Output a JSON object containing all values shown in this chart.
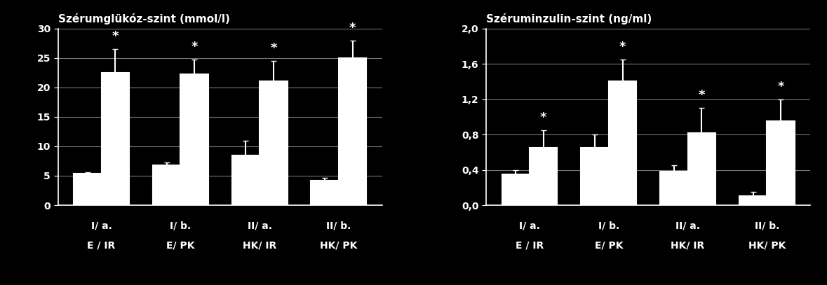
{
  "left": {
    "title": "Szérumglükóz-szint (mmol/l)",
    "ylim": [
      0,
      30
    ],
    "yticks": [
      0,
      5,
      10,
      15,
      20,
      25,
      30
    ],
    "ytick_labels": [
      "0",
      "5",
      "10",
      "15",
      "20",
      "25",
      "30"
    ],
    "before_vals": [
      5.3,
      6.8,
      8.5,
      4.2
    ],
    "after_vals": [
      22.5,
      22.2,
      21.0,
      25.0
    ],
    "before_errs": [
      0.3,
      0.4,
      2.5,
      0.4
    ],
    "after_errs": [
      4.0,
      2.5,
      3.5,
      3.0
    ]
  },
  "right": {
    "title": "Széruminzulin-szint (ng/ml)",
    "ylim": [
      0,
      2.0
    ],
    "yticks": [
      0.0,
      0.4,
      0.8,
      1.2,
      1.6,
      2.0
    ],
    "ytick_labels": [
      "0,0",
      "0,4",
      "0,8",
      "1,2",
      "1,6",
      "2,0"
    ],
    "before_vals": [
      0.35,
      0.65,
      0.38,
      0.1
    ],
    "after_vals": [
      0.65,
      1.4,
      0.82,
      0.95
    ],
    "before_errs": [
      0.05,
      0.15,
      0.07,
      0.05
    ],
    "after_errs": [
      0.2,
      0.25,
      0.28,
      0.25
    ]
  },
  "labels_line1": [
    "I/ a.",
    "I/ b.",
    "II/ a.",
    "II/ b."
  ],
  "labels_line2_left": [
    "E / IR",
    "E/ PK",
    "HK/ IR",
    "HK/ PK"
  ],
  "labels_line2_right": [
    "E / IR",
    "E/ PK",
    "HK/ IR",
    "HK/ PK"
  ],
  "bar_color": "#ffffff",
  "bg_color": "#000000",
  "text_color": "#ffffff",
  "bar_width": 0.35,
  "bar_edge_color": "#ffffff",
  "bar_linewidth": 1.5,
  "grid_color": "#777777",
  "star_fontsize": 13,
  "title_fontsize": 11,
  "tick_fontsize": 10,
  "label_fontsize": 10
}
